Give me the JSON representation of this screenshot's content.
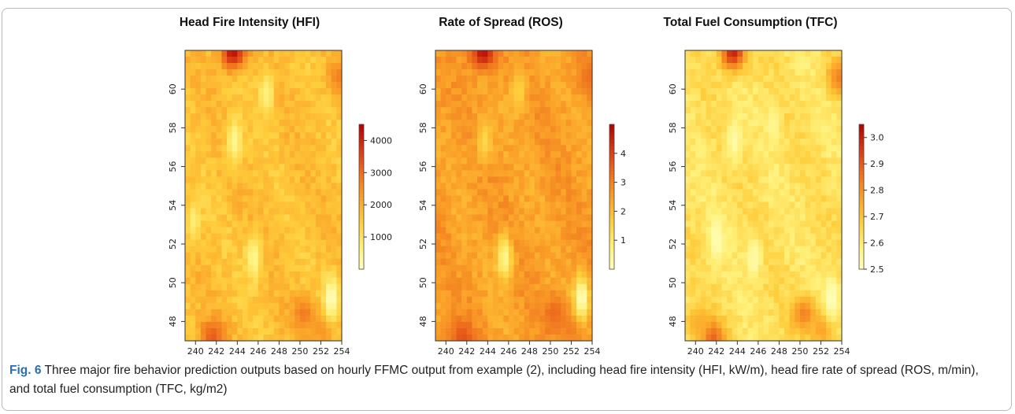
{
  "chart_data": [
    {
      "type": "heatmap",
      "title": "Head Fire Intensity (HFI)",
      "xlim": [
        239,
        254
      ],
      "ylim": [
        47,
        62
      ],
      "x_ticks": [
        240,
        242,
        244,
        246,
        248,
        250,
        252,
        254
      ],
      "y_ticks": [
        48,
        50,
        52,
        54,
        56,
        58,
        60
      ],
      "colorbar": {
        "range": [
          0,
          4500
        ],
        "ticks": [
          1000,
          2000,
          3000,
          4000
        ],
        "low_color": "#ffffc0",
        "high_color": "#b30000"
      },
      "base_level": 0.38,
      "hotspots": [
        {
          "x": 243.6,
          "y": 61.9,
          "level": 0.95
        },
        {
          "x": 241.6,
          "y": 47.2,
          "level": 0.72
        },
        {
          "x": 253.8,
          "y": 60.6,
          "level": 0.6
        },
        {
          "x": 250.4,
          "y": 48.4,
          "level": 0.62
        },
        {
          "x": 252.2,
          "y": 47.6,
          "level": 0.55
        }
      ],
      "cool_zones": [
        {
          "x": 253.0,
          "y": 49.2,
          "level": 0.0
        },
        {
          "x": 239.8,
          "y": 53.2,
          "level": 0.18
        },
        {
          "x": 245.6,
          "y": 51.3,
          "level": 0.1
        },
        {
          "x": 243.7,
          "y": 57.3,
          "level": 0.1
        },
        {
          "x": 246.8,
          "y": 59.8,
          "level": 0.15
        }
      ]
    },
    {
      "type": "heatmap",
      "title": "Rate of Spread (ROS)",
      "xlim": [
        239,
        254
      ],
      "ylim": [
        47,
        62
      ],
      "x_ticks": [
        240,
        242,
        244,
        246,
        248,
        250,
        252,
        254
      ],
      "y_ticks": [
        48,
        50,
        52,
        54,
        56,
        58,
        60
      ],
      "colorbar": {
        "range": [
          0,
          5
        ],
        "ticks": [
          1,
          2,
          3,
          4
        ],
        "low_color": "#ffffc0",
        "high_color": "#b30000"
      },
      "base_level": 0.5,
      "hotspots": [
        {
          "x": 243.6,
          "y": 61.9,
          "level": 0.95
        },
        {
          "x": 241.6,
          "y": 47.2,
          "level": 0.75
        },
        {
          "x": 253.8,
          "y": 60.6,
          "level": 0.66
        },
        {
          "x": 250.4,
          "y": 48.4,
          "level": 0.68
        },
        {
          "x": 252.2,
          "y": 47.6,
          "level": 0.62
        }
      ],
      "cool_zones": [
        {
          "x": 253.0,
          "y": 49.2,
          "level": 0.0
        },
        {
          "x": 245.6,
          "y": 51.3,
          "level": 0.1
        },
        {
          "x": 243.7,
          "y": 57.3,
          "level": 0.28
        },
        {
          "x": 247.0,
          "y": 59.9,
          "level": 0.3
        }
      ]
    },
    {
      "type": "heatmap",
      "title": "Total Fuel Consumption (TFC)",
      "xlim": [
        239,
        254
      ],
      "ylim": [
        47,
        62
      ],
      "x_ticks": [
        240,
        242,
        244,
        246,
        248,
        250,
        252,
        254
      ],
      "y_ticks": [
        48,
        50,
        52,
        54,
        56,
        58,
        60
      ],
      "colorbar": {
        "range": [
          2.5,
          3.05
        ],
        "ticks": [
          2.5,
          2.6,
          2.7,
          2.8,
          2.9,
          3.0
        ],
        "low_color": "#ffffc0",
        "high_color": "#b30000"
      },
      "base_level": 0.24,
      "hotspots": [
        {
          "x": 243.6,
          "y": 61.9,
          "level": 0.9
        },
        {
          "x": 241.6,
          "y": 47.2,
          "level": 0.72
        },
        {
          "x": 253.8,
          "y": 60.6,
          "level": 0.6
        },
        {
          "x": 250.4,
          "y": 48.4,
          "level": 0.6
        },
        {
          "x": 252.2,
          "y": 47.6,
          "level": 0.5
        },
        {
          "x": 240.2,
          "y": 47.9,
          "level": 0.45
        }
      ],
      "cool_zones": [
        {
          "x": 253.0,
          "y": 49.2,
          "level": 0.0
        },
        {
          "x": 242.0,
          "y": 52.2,
          "level": 0.02
        },
        {
          "x": 245.6,
          "y": 51.3,
          "level": 0.05
        },
        {
          "x": 243.7,
          "y": 57.3,
          "level": 0.05
        },
        {
          "x": 247.5,
          "y": 58.2,
          "level": 0.1
        }
      ]
    }
  ],
  "caption": {
    "label": "Fig. 6",
    "text": " Three major fire behavior prediction outputs based on hourly FFMC output from example (2), including head fire intensity (HFI, kW/m), head fire rate of spread (ROS, m/min), and total fuel consumption (TFC, kg/m2)"
  }
}
